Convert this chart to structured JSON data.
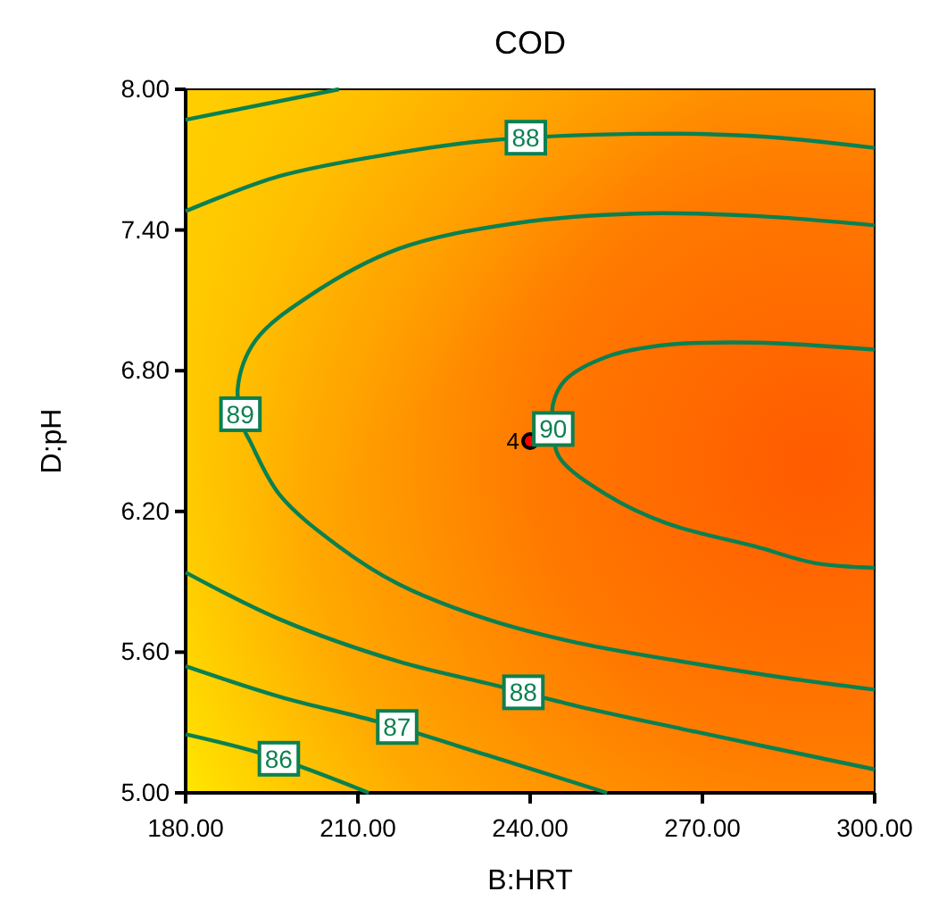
{
  "chart_data": {
    "type": "line",
    "title": "COD",
    "xlabel": "B:HRT",
    "ylabel": "D:pH",
    "xlim": [
      180,
      300
    ],
    "ylim": [
      5,
      8
    ],
    "xticks": [
      {
        "value": 180,
        "label": "180.00"
      },
      {
        "value": 210,
        "label": "210.00"
      },
      {
        "value": 240,
        "label": "240.00"
      },
      {
        "value": 270,
        "label": "270.00"
      },
      {
        "value": 300,
        "label": "300.00"
      }
    ],
    "yticks": [
      {
        "value": 5,
        "label": "5.00"
      },
      {
        "value": 5.6,
        "label": "5.60"
      },
      {
        "value": 6.2,
        "label": "6.20"
      },
      {
        "value": 6.8,
        "label": "6.80"
      },
      {
        "value": 7.4,
        "label": "7.40"
      },
      {
        "value": 8,
        "label": "8.00"
      }
    ],
    "grid": false,
    "marker": "none",
    "line_style": "solid",
    "series": [
      {
        "color": "#0b8050",
        "x": [
          180,
          206.7
        ],
        "values": [
          7.87,
          8.0
        ]
      },
      {
        "name": "88",
        "color": "#0b8050",
        "x": [
          180,
          196.4,
          217.1,
          232.1,
          258.5,
          279.3,
          300
        ],
        "values": [
          7.48,
          7.63,
          7.73,
          7.78,
          7.81,
          7.8,
          7.75
        ]
      },
      {
        "name": "89",
        "color": "#0b8050",
        "x": [
          300,
          279.3,
          258.5,
          237.8,
          217.1,
          201.6,
          192.2,
          189.1,
          190.2,
          191.2,
          196.4,
          206.7,
          217.1,
          232.6,
          248.2,
          268.9,
          284.5,
          300
        ],
        "values": [
          7.42,
          7.46,
          7.47,
          7.43,
          7.32,
          7.12,
          6.93,
          6.73,
          6.55,
          6.5,
          6.27,
          6.05,
          5.89,
          5.74,
          5.64,
          5.55,
          5.49,
          5.44
        ]
      },
      {
        "name": "90",
        "color": "#0b8050",
        "x": [
          300,
          279.3,
          263.7,
          253.4,
          246.1,
          244,
          244,
          245.1,
          253.4,
          263.7,
          279.3,
          289.6,
          300
        ],
        "values": [
          6.89,
          6.92,
          6.91,
          6.86,
          6.76,
          6.66,
          6.55,
          6.43,
          6.27,
          6.15,
          6.05,
          5.98,
          5.96
        ]
      },
      {
        "name": "88",
        "color": "#0b8050",
        "x": [
          180,
          196.4,
          217.1,
          233.7,
          248.2,
          268.9,
          300
        ],
        "values": [
          5.94,
          5.74,
          5.56,
          5.46,
          5.37,
          5.26,
          5.1
        ]
      },
      {
        "name": "87",
        "color": "#0b8050",
        "x": [
          180,
          196.4,
          214,
          232.6,
          253.4
        ],
        "values": [
          5.54,
          5.41,
          5.3,
          5.16,
          5.0
        ]
      },
      {
        "name": "86",
        "color": "#0b8050",
        "x": [
          180,
          194.3,
          211.9
        ],
        "values": [
          5.25,
          5.16,
          5.0
        ]
      },
      {
        "type": "scatter",
        "marker": "circle",
        "color": "#ff0000",
        "x": [
          240
        ],
        "values": [
          6.5
        ]
      }
    ],
    "annotations": [
      {
        "text": "4",
        "x": 240,
        "y": 6.5
      }
    ]
  }
}
